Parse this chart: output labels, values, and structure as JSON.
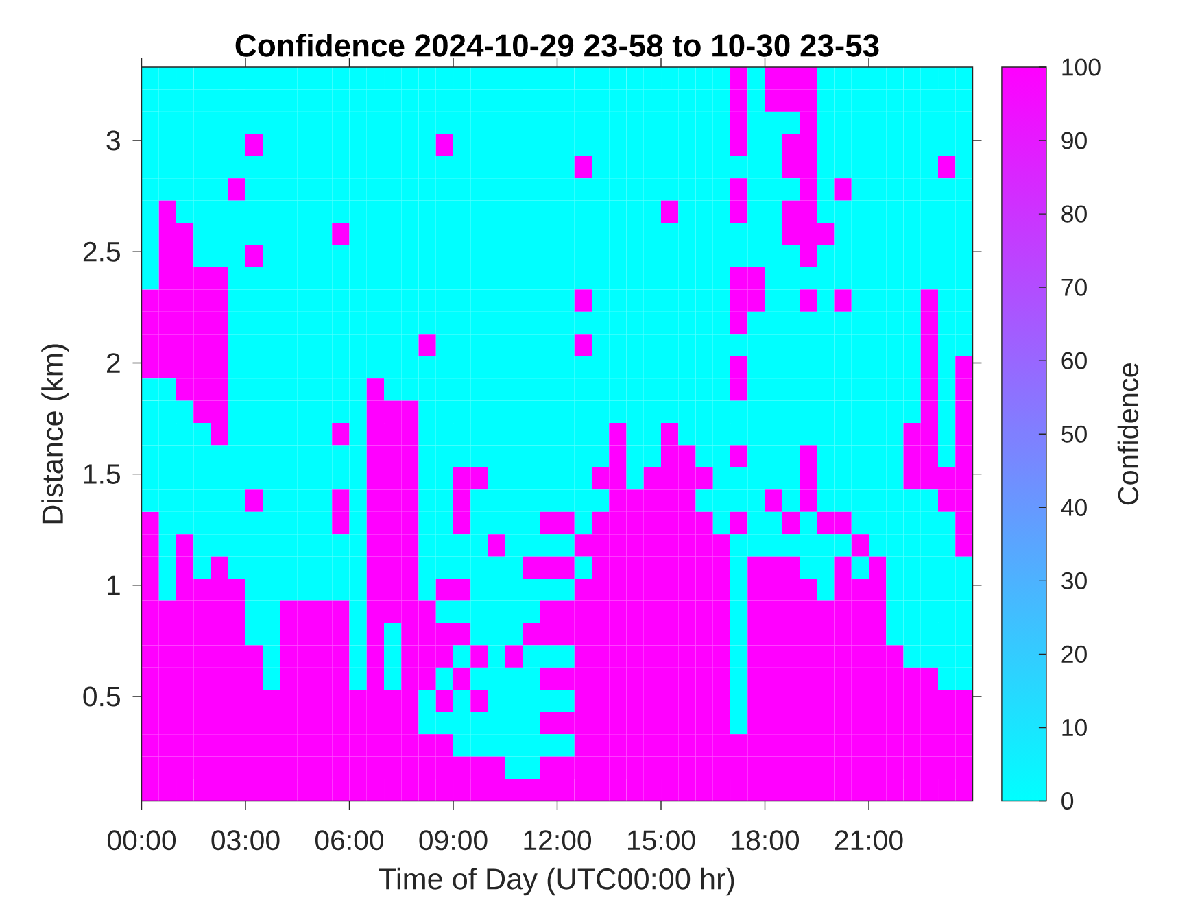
{
  "chart_data": {
    "type": "heatmap",
    "title": "Confidence 2024-10-29 23-58 to 10-30 23-53",
    "xlabel": "Time of Day (UTC00:00 hr)",
    "ylabel": "Distance (km)",
    "clabel": "Confidence",
    "x": [
      0.25,
      0.75,
      1.25,
      1.75,
      2.25,
      2.75,
      3.25,
      3.75,
      4.25,
      4.75,
      5.25,
      5.75,
      6.25,
      6.75,
      7.25,
      7.75,
      8.25,
      8.75,
      9.25,
      9.75,
      10.25,
      10.75,
      11.25,
      11.75,
      12.25,
      12.75,
      13.25,
      13.75,
      14.25,
      14.75,
      15.25,
      15.75,
      16.25,
      16.75,
      17.25,
      17.75,
      18.25,
      18.75,
      19.25,
      19.75,
      20.25,
      20.75,
      21.25,
      21.75,
      22.25,
      22.75,
      23.25,
      23.75
    ],
    "y": [
      3.28,
      3.18,
      3.08,
      2.98,
      2.88,
      2.78,
      2.68,
      2.58,
      2.48,
      2.38,
      2.28,
      2.18,
      2.08,
      1.98,
      1.88,
      1.78,
      1.68,
      1.58,
      1.48,
      1.38,
      1.28,
      1.18,
      1.08,
      0.98,
      0.88,
      0.78,
      0.68,
      0.58,
      0.48,
      0.38,
      0.28,
      0.18,
      0.08
    ],
    "cells": [
      [
        0,
        0,
        0,
        0,
        0,
        0,
        0,
        0,
        0,
        0,
        0,
        0,
        0,
        0,
        0,
        0,
        0,
        0,
        0,
        0,
        0,
        0,
        0,
        0,
        0,
        0,
        0,
        0,
        0,
        0,
        0,
        0,
        0,
        0,
        100,
        0,
        100,
        100,
        100,
        0,
        0,
        0,
        0,
        0,
        0,
        0,
        0,
        0
      ],
      [
        0,
        0,
        0,
        0,
        0,
        0,
        0,
        0,
        0,
        0,
        0,
        0,
        0,
        0,
        0,
        0,
        0,
        0,
        0,
        0,
        0,
        0,
        0,
        0,
        0,
        0,
        0,
        0,
        0,
        0,
        0,
        0,
        0,
        0,
        100,
        0,
        100,
        100,
        100,
        0,
        0,
        0,
        0,
        0,
        0,
        0,
        0,
        0
      ],
      [
        0,
        0,
        0,
        0,
        0,
        0,
        0,
        0,
        0,
        0,
        0,
        0,
        0,
        0,
        0,
        0,
        0,
        0,
        0,
        0,
        0,
        0,
        0,
        0,
        0,
        0,
        0,
        0,
        0,
        0,
        0,
        0,
        0,
        0,
        100,
        0,
        0,
        0,
        100,
        0,
        0,
        0,
        0,
        0,
        0,
        0,
        0,
        0
      ],
      [
        0,
        0,
        0,
        0,
        0,
        0,
        100,
        0,
        0,
        0,
        0,
        0,
        0,
        0,
        0,
        0,
        0,
        100,
        0,
        0,
        0,
        0,
        0,
        0,
        0,
        0,
        0,
        0,
        0,
        0,
        0,
        0,
        0,
        0,
        100,
        0,
        0,
        100,
        100,
        0,
        0,
        0,
        0,
        0,
        0,
        0,
        0,
        0
      ],
      [
        0,
        0,
        0,
        0,
        0,
        0,
        0,
        0,
        0,
        0,
        0,
        0,
        0,
        0,
        0,
        0,
        0,
        0,
        0,
        0,
        0,
        0,
        0,
        0,
        0,
        100,
        0,
        0,
        0,
        0,
        0,
        0,
        0,
        0,
        0,
        0,
        0,
        100,
        100,
        0,
        0,
        0,
        0,
        0,
        0,
        0,
        100,
        0
      ],
      [
        0,
        0,
        0,
        0,
        0,
        100,
        0,
        0,
        0,
        0,
        0,
        0,
        0,
        0,
        0,
        0,
        0,
        0,
        0,
        0,
        0,
        0,
        0,
        0,
        0,
        0,
        0,
        0,
        0,
        0,
        0,
        0,
        0,
        0,
        100,
        0,
        0,
        0,
        100,
        0,
        100,
        0,
        0,
        0,
        0,
        0,
        0,
        0
      ],
      [
        0,
        100,
        0,
        0,
        0,
        0,
        0,
        0,
        0,
        0,
        0,
        0,
        0,
        0,
        0,
        0,
        0,
        0,
        0,
        0,
        0,
        0,
        0,
        0,
        0,
        0,
        0,
        0,
        0,
        0,
        100,
        0,
        0,
        0,
        100,
        0,
        0,
        100,
        100,
        0,
        0,
        0,
        0,
        0,
        0,
        0,
        0,
        0
      ],
      [
        0,
        100,
        100,
        0,
        0,
        0,
        0,
        0,
        0,
        0,
        0,
        100,
        0,
        0,
        0,
        0,
        0,
        0,
        0,
        0,
        0,
        0,
        0,
        0,
        0,
        0,
        0,
        0,
        0,
        0,
        0,
        0,
        0,
        0,
        0,
        0,
        0,
        100,
        100,
        100,
        0,
        0,
        0,
        0,
        0,
        0,
        0,
        0
      ],
      [
        0,
        100,
        100,
        0,
        0,
        0,
        100,
        0,
        0,
        0,
        0,
        0,
        0,
        0,
        0,
        0,
        0,
        0,
        0,
        0,
        0,
        0,
        0,
        0,
        0,
        0,
        0,
        0,
        0,
        0,
        0,
        0,
        0,
        0,
        0,
        0,
        0,
        0,
        100,
        0,
        0,
        0,
        0,
        0,
        0,
        0,
        0,
        0
      ],
      [
        0,
        100,
        100,
        100,
        100,
        0,
        0,
        0,
        0,
        0,
        0,
        0,
        0,
        0,
        0,
        0,
        0,
        0,
        0,
        0,
        0,
        0,
        0,
        0,
        0,
        0,
        0,
        0,
        0,
        0,
        0,
        0,
        0,
        0,
        100,
        100,
        0,
        0,
        0,
        0,
        0,
        0,
        0,
        0,
        0,
        0,
        0,
        0
      ],
      [
        100,
        100,
        100,
        100,
        100,
        0,
        0,
        0,
        0,
        0,
        0,
        0,
        0,
        0,
        0,
        0,
        0,
        0,
        0,
        0,
        0,
        0,
        0,
        0,
        0,
        100,
        0,
        0,
        0,
        0,
        0,
        0,
        0,
        0,
        100,
        100,
        0,
        0,
        100,
        0,
        100,
        0,
        0,
        0,
        0,
        100,
        0,
        0
      ],
      [
        100,
        100,
        100,
        100,
        100,
        0,
        0,
        0,
        0,
        0,
        0,
        0,
        0,
        0,
        0,
        0,
        0,
        0,
        0,
        0,
        0,
        0,
        0,
        0,
        0,
        0,
        0,
        0,
        0,
        0,
        0,
        0,
        0,
        0,
        100,
        0,
        0,
        0,
        0,
        0,
        0,
        0,
        0,
        0,
        0,
        100,
        0,
        0
      ],
      [
        100,
        100,
        100,
        100,
        100,
        0,
        0,
        0,
        0,
        0,
        0,
        0,
        0,
        0,
        0,
        0,
        100,
        0,
        0,
        0,
        0,
        0,
        0,
        0,
        0,
        100,
        0,
        0,
        0,
        0,
        0,
        0,
        0,
        0,
        0,
        0,
        0,
        0,
        0,
        0,
        0,
        0,
        0,
        0,
        0,
        100,
        0,
        0
      ],
      [
        100,
        100,
        100,
        100,
        100,
        0,
        0,
        0,
        0,
        0,
        0,
        0,
        0,
        0,
        0,
        0,
        0,
        0,
        0,
        0,
        0,
        0,
        0,
        0,
        0,
        0,
        0,
        0,
        0,
        0,
        0,
        0,
        0,
        0,
        100,
        0,
        0,
        0,
        0,
        0,
        0,
        0,
        0,
        0,
        0,
        100,
        0,
        100
      ],
      [
        0,
        0,
        100,
        100,
        100,
        0,
        0,
        0,
        0,
        0,
        0,
        0,
        0,
        100,
        0,
        0,
        0,
        0,
        0,
        0,
        0,
        0,
        0,
        0,
        0,
        0,
        0,
        0,
        0,
        0,
        0,
        0,
        0,
        0,
        100,
        0,
        0,
        0,
        0,
        0,
        0,
        0,
        0,
        0,
        0,
        100,
        0,
        100
      ],
      [
        0,
        0,
        0,
        100,
        100,
        0,
        0,
        0,
        0,
        0,
        0,
        0,
        0,
        100,
        100,
        100,
        0,
        0,
        0,
        0,
        0,
        0,
        0,
        0,
        0,
        0,
        0,
        0,
        0,
        0,
        0,
        0,
        0,
        0,
        0,
        0,
        0,
        0,
        0,
        0,
        0,
        0,
        0,
        0,
        0,
        100,
        0,
        100
      ],
      [
        0,
        0,
        0,
        0,
        100,
        0,
        0,
        0,
        0,
        0,
        0,
        100,
        0,
        100,
        100,
        100,
        0,
        0,
        0,
        0,
        0,
        0,
        0,
        0,
        0,
        0,
        0,
        100,
        0,
        0,
        100,
        0,
        0,
        0,
        0,
        0,
        0,
        0,
        0,
        0,
        0,
        0,
        0,
        0,
        100,
        100,
        0,
        100
      ],
      [
        0,
        0,
        0,
        0,
        0,
        0,
        0,
        0,
        0,
        0,
        0,
        0,
        0,
        100,
        100,
        100,
        0,
        0,
        0,
        0,
        0,
        0,
        0,
        0,
        0,
        0,
        0,
        100,
        0,
        0,
        100,
        100,
        0,
        0,
        100,
        0,
        0,
        0,
        100,
        0,
        0,
        0,
        0,
        0,
        100,
        100,
        0,
        100
      ],
      [
        0,
        0,
        0,
        0,
        0,
        0,
        0,
        0,
        0,
        0,
        0,
        0,
        0,
        100,
        100,
        100,
        0,
        0,
        100,
        100,
        0,
        0,
        0,
        0,
        0,
        0,
        100,
        100,
        0,
        100,
        100,
        100,
        100,
        0,
        0,
        0,
        0,
        0,
        100,
        0,
        0,
        0,
        0,
        0,
        100,
        100,
        100,
        100
      ],
      [
        0,
        0,
        0,
        0,
        0,
        0,
        100,
        0,
        0,
        0,
        0,
        100,
        0,
        100,
        100,
        100,
        0,
        0,
        100,
        0,
        0,
        0,
        0,
        0,
        0,
        0,
        0,
        100,
        100,
        100,
        100,
        100,
        0,
        0,
        0,
        0,
        100,
        0,
        100,
        0,
        0,
        0,
        0,
        0,
        0,
        0,
        100,
        100
      ],
      [
        100,
        0,
        0,
        0,
        0,
        0,
        0,
        0,
        0,
        0,
        0,
        100,
        0,
        100,
        100,
        100,
        0,
        0,
        100,
        0,
        0,
        0,
        0,
        100,
        100,
        0,
        100,
        100,
        100,
        100,
        100,
        100,
        100,
        0,
        100,
        0,
        0,
        100,
        0,
        100,
        100,
        0,
        0,
        0,
        0,
        0,
        0,
        100
      ],
      [
        100,
        0,
        100,
        0,
        0,
        0,
        0,
        0,
        0,
        0,
        0,
        0,
        0,
        100,
        100,
        100,
        0,
        0,
        0,
        0,
        100,
        0,
        0,
        0,
        0,
        100,
        100,
        100,
        100,
        100,
        100,
        100,
        100,
        100,
        0,
        0,
        0,
        0,
        0,
        0,
        0,
        100,
        0,
        0,
        0,
        0,
        0,
        100
      ],
      [
        100,
        0,
        100,
        0,
        100,
        0,
        0,
        0,
        0,
        0,
        0,
        0,
        0,
        100,
        100,
        100,
        0,
        0,
        0,
        0,
        0,
        0,
        100,
        100,
        100,
        0,
        100,
        100,
        100,
        100,
        100,
        100,
        100,
        100,
        0,
        100,
        100,
        100,
        0,
        0,
        100,
        0,
        100,
        0,
        0,
        0,
        0,
        0
      ],
      [
        100,
        0,
        100,
        100,
        100,
        100,
        0,
        0,
        0,
        0,
        0,
        0,
        0,
        100,
        100,
        100,
        0,
        100,
        100,
        0,
        0,
        0,
        0,
        0,
        0,
        100,
        100,
        100,
        100,
        100,
        100,
        100,
        100,
        100,
        0,
        100,
        100,
        100,
        100,
        0,
        100,
        100,
        100,
        0,
        0,
        0,
        0,
        0
      ],
      [
        100,
        100,
        100,
        100,
        100,
        100,
        0,
        0,
        100,
        100,
        100,
        100,
        0,
        100,
        100,
        100,
        100,
        0,
        0,
        0,
        0,
        0,
        0,
        100,
        100,
        100,
        100,
        100,
        100,
        100,
        100,
        100,
        100,
        100,
        0,
        100,
        100,
        100,
        100,
        100,
        100,
        100,
        100,
        0,
        0,
        0,
        0,
        0
      ],
      [
        100,
        100,
        100,
        100,
        100,
        100,
        0,
        0,
        100,
        100,
        100,
        100,
        0,
        100,
        0,
        100,
        100,
        100,
        100,
        0,
        0,
        0,
        100,
        100,
        100,
        100,
        100,
        100,
        100,
        100,
        100,
        100,
        100,
        100,
        0,
        100,
        100,
        100,
        100,
        100,
        100,
        100,
        100,
        0,
        0,
        0,
        0,
        0
      ],
      [
        100,
        100,
        100,
        100,
        100,
        100,
        100,
        0,
        100,
        100,
        100,
        100,
        0,
        100,
        0,
        100,
        100,
        100,
        0,
        100,
        0,
        100,
        0,
        0,
        0,
        100,
        100,
        100,
        100,
        100,
        100,
        100,
        100,
        100,
        0,
        100,
        100,
        100,
        100,
        100,
        100,
        100,
        100,
        100,
        0,
        0,
        0,
        0
      ],
      [
        100,
        100,
        100,
        100,
        100,
        100,
        100,
        0,
        100,
        100,
        100,
        100,
        0,
        100,
        0,
        100,
        100,
        0,
        100,
        0,
        0,
        0,
        0,
        100,
        100,
        100,
        100,
        100,
        100,
        100,
        100,
        100,
        100,
        100,
        0,
        100,
        100,
        100,
        100,
        100,
        100,
        100,
        100,
        100,
        100,
        100,
        0,
        0
      ],
      [
        100,
        100,
        100,
        100,
        100,
        100,
        100,
        100,
        100,
        100,
        100,
        100,
        100,
        100,
        100,
        100,
        0,
        100,
        0,
        100,
        0,
        0,
        0,
        0,
        0,
        100,
        100,
        100,
        100,
        100,
        100,
        100,
        100,
        100,
        0,
        100,
        100,
        100,
        100,
        100,
        100,
        100,
        100,
        100,
        100,
        100,
        100,
        100
      ],
      [
        100,
        100,
        100,
        100,
        100,
        100,
        100,
        100,
        100,
        100,
        100,
        100,
        100,
        100,
        100,
        100,
        0,
        0,
        0,
        0,
        0,
        0,
        0,
        100,
        100,
        100,
        100,
        100,
        100,
        100,
        100,
        100,
        100,
        100,
        0,
        100,
        100,
        100,
        100,
        100,
        100,
        100,
        100,
        100,
        100,
        100,
        100,
        100
      ],
      [
        100,
        100,
        100,
        100,
        100,
        100,
        100,
        100,
        100,
        100,
        100,
        100,
        100,
        100,
        100,
        100,
        100,
        100,
        0,
        0,
        0,
        0,
        0,
        0,
        0,
        100,
        100,
        100,
        100,
        100,
        100,
        100,
        100,
        100,
        100,
        100,
        100,
        100,
        100,
        100,
        100,
        100,
        100,
        100,
        100,
        100,
        100,
        100
      ],
      [
        100,
        100,
        100,
        100,
        100,
        100,
        100,
        100,
        100,
        100,
        100,
        100,
        100,
        100,
        100,
        100,
        100,
        100,
        100,
        100,
        100,
        0,
        0,
        100,
        100,
        100,
        100,
        100,
        100,
        100,
        100,
        100,
        100,
        100,
        100,
        100,
        100,
        100,
        100,
        100,
        100,
        100,
        100,
        100,
        100,
        100,
        100,
        100
      ],
      [
        100,
        100,
        100,
        100,
        100,
        100,
        100,
        100,
        100,
        100,
        100,
        100,
        100,
        100,
        100,
        100,
        100,
        100,
        100,
        100,
        100,
        100,
        100,
        100,
        100,
        100,
        100,
        100,
        100,
        100,
        100,
        100,
        100,
        100,
        100,
        100,
        100,
        100,
        100,
        100,
        100,
        100,
        100,
        100,
        100,
        100,
        100,
        100
      ]
    ],
    "xlim": [
      0,
      24
    ],
    "ylim": [
      0.03,
      3.33
    ],
    "xticks": [
      {
        "value": 0,
        "label": "00:00"
      },
      {
        "value": 3,
        "label": "03:00"
      },
      {
        "value": 6,
        "label": "06:00"
      },
      {
        "value": 9,
        "label": "09:00"
      },
      {
        "value": 12,
        "label": "12:00"
      },
      {
        "value": 15,
        "label": "15:00"
      },
      {
        "value": 18,
        "label": "18:00"
      },
      {
        "value": 21,
        "label": "21:00"
      }
    ],
    "yticks": [
      0.5,
      1,
      1.5,
      2,
      2.5,
      3
    ],
    "clim": [
      0,
      100
    ],
    "cticks": [
      0,
      10,
      20,
      30,
      40,
      50,
      60,
      70,
      80,
      90,
      100
    ]
  }
}
